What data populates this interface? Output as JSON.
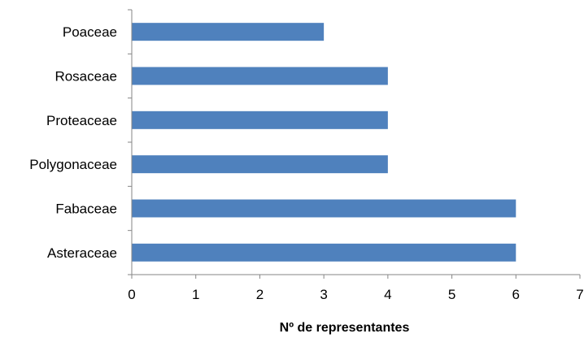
{
  "chart_data": {
    "type": "bar",
    "orientation": "horizontal",
    "categories": [
      "Poaceae",
      "Rosaceae",
      "Proteaceae",
      "Polygonaceae",
      "Fabaceae",
      "Asteraceae"
    ],
    "values": [
      3,
      4,
      4,
      4,
      6,
      6
    ],
    "title": "",
    "xlabel": "Nº de representantes",
    "ylabel": "",
    "xlim": [
      0,
      7
    ],
    "xticks": [
      "0",
      "1",
      "2",
      "3",
      "4",
      "5",
      "6",
      "7"
    ],
    "grid": false,
    "legend": "none",
    "bar_color": "#4F81BD"
  }
}
